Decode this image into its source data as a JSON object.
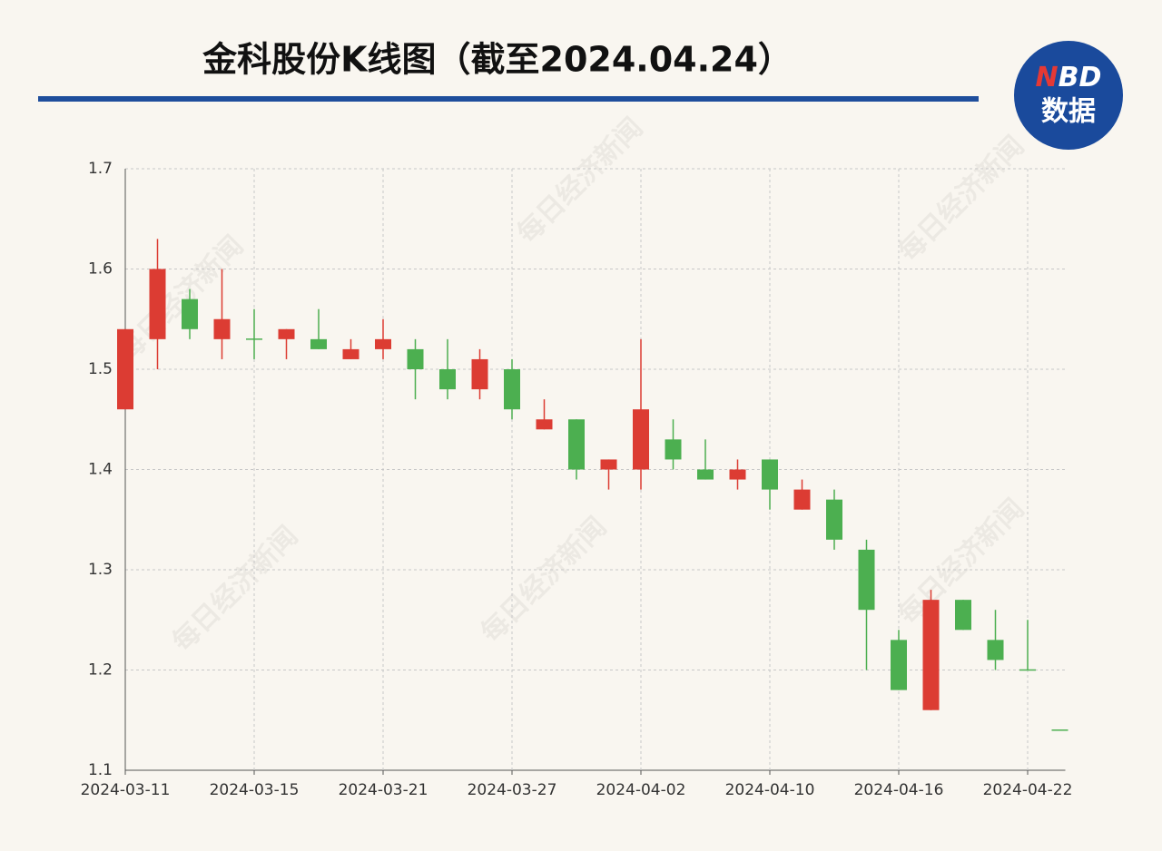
{
  "chart_data": {
    "type": "candlestick",
    "title": "金科股份K线图（截至2024.04.24）",
    "logo_n": "N",
    "logo_bd": "BD",
    "logo_label": "数据",
    "watermark": "每日经济新闻",
    "categories": [
      "2024-03-11",
      null,
      null,
      null,
      "2024-03-15",
      null,
      null,
      null,
      "2024-03-21",
      null,
      null,
      null,
      "2024-03-27",
      null,
      null,
      null,
      "2024-04-02",
      null,
      null,
      null,
      "2024-04-10",
      null,
      null,
      null,
      "2024-04-16",
      null,
      null,
      null,
      "2024-04-22",
      null
    ],
    "open": [
      1.46,
      1.53,
      1.57,
      1.53,
      1.53,
      1.53,
      1.53,
      1.51,
      1.52,
      1.52,
      1.5,
      1.48,
      1.5,
      1.44,
      1.45,
      1.4,
      1.4,
      1.43,
      1.4,
      1.39,
      1.41,
      1.36,
      1.37,
      1.32,
      1.23,
      1.16,
      1.27,
      1.23,
      1.2,
      1.14
    ],
    "high": [
      1.54,
      1.63,
      1.58,
      1.6,
      1.56,
      1.54,
      1.56,
      1.53,
      1.55,
      1.53,
      1.53,
      1.52,
      1.51,
      1.47,
      1.45,
      1.41,
      1.53,
      1.45,
      1.43,
      1.41,
      1.41,
      1.39,
      1.38,
      1.33,
      1.24,
      1.28,
      1.27,
      1.26,
      1.25,
      1.14
    ],
    "low": [
      1.46,
      1.5,
      1.53,
      1.51,
      1.51,
      1.51,
      1.52,
      1.51,
      1.51,
      1.47,
      1.47,
      1.47,
      1.45,
      1.44,
      1.39,
      1.38,
      1.38,
      1.4,
      1.39,
      1.38,
      1.36,
      1.36,
      1.32,
      1.2,
      1.18,
      1.16,
      1.24,
      1.2,
      1.2,
      1.14
    ],
    "close": [
      1.54,
      1.6,
      1.54,
      1.55,
      1.53,
      1.54,
      1.52,
      1.52,
      1.53,
      1.5,
      1.48,
      1.51,
      1.46,
      1.45,
      1.4,
      1.41,
      1.46,
      1.41,
      1.39,
      1.4,
      1.38,
      1.38,
      1.33,
      1.26,
      1.18,
      1.27,
      1.24,
      1.21,
      1.2,
      1.14
    ],
    "up_color": "#dc3c33",
    "down_color": "#4caf50",
    "ylim": [
      1.1,
      1.7
    ],
    "yticks": [
      1.1,
      1.2,
      1.3,
      1.4,
      1.5,
      1.6,
      1.7
    ],
    "grid": true
  }
}
